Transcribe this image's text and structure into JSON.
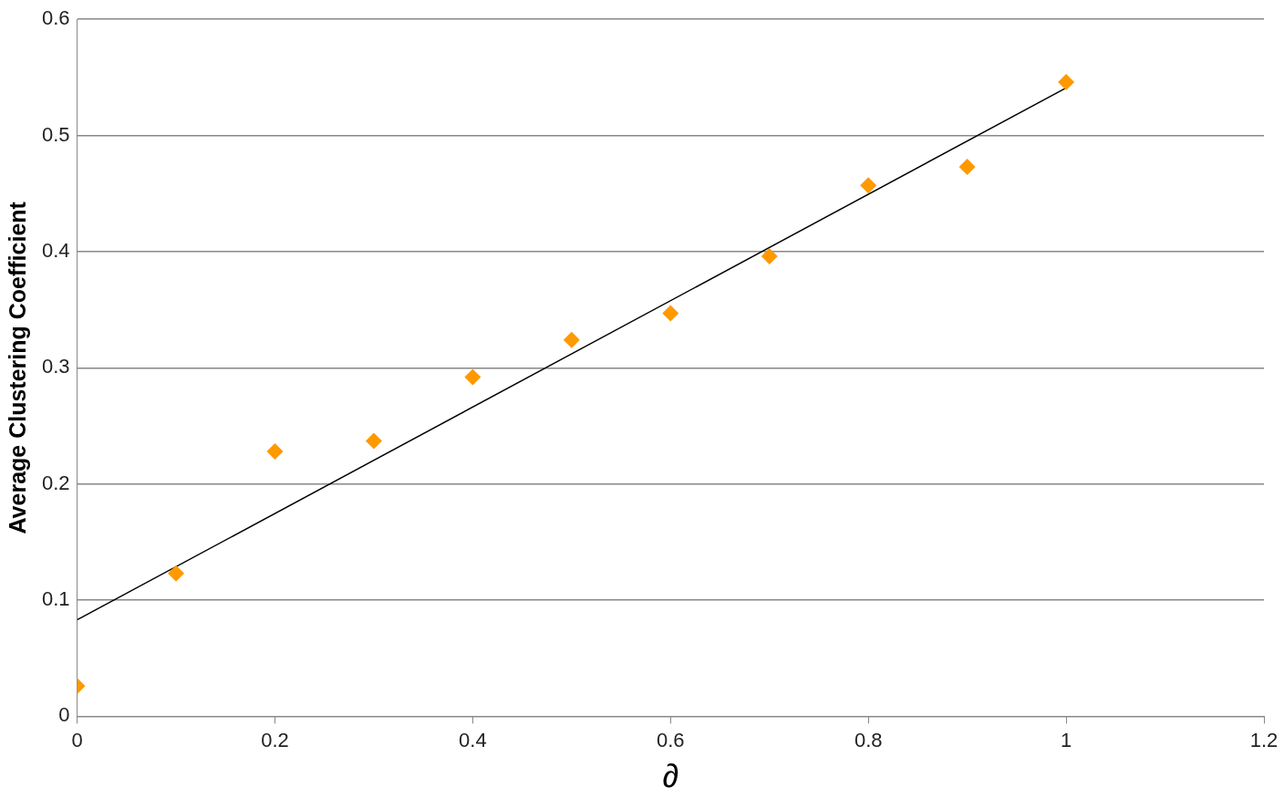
{
  "chart_data": {
    "type": "scatter",
    "xlabel": "∂",
    "ylabel": "Average Clustering Coefficient",
    "series": [
      {
        "type": "scatter",
        "marker": "diamond",
        "color": "#ff9900",
        "x": [
          0,
          0.1,
          0.2,
          0.3,
          0.4,
          0.5,
          0.6,
          0.7,
          0.8,
          0.9,
          1
        ],
        "values": [
          0.026,
          0.123,
          0.228,
          0.237,
          0.292,
          0.324,
          0.347,
          0.396,
          0.457,
          0.473,
          0.546
        ]
      },
      {
        "type": "line",
        "color": "#000000",
        "x": [
          0,
          1
        ],
        "values": [
          0.083,
          0.541
        ]
      }
    ],
    "grid": "y",
    "legend": false,
    "xlim": [
      0,
      1.2
    ],
    "xticks": [
      0,
      0.2,
      0.4,
      0.6,
      0.8,
      1,
      1.2
    ],
    "ylim": [
      0,
      0.6
    ],
    "yticks": [
      0,
      0.1,
      0.2,
      0.3,
      0.4,
      0.5,
      0.6
    ]
  }
}
